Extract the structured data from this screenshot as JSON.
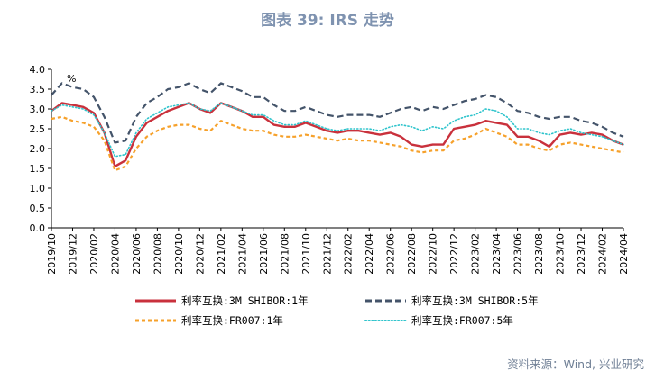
{
  "title": "图表 39: IRS 走势",
  "source": "资料来源：Wind, 兴业研究",
  "colors": {
    "title": "#7f93b0",
    "red": "#c9313c",
    "navy": "#44546a",
    "orange": "#f6a12b",
    "cyan": "#2ec4cc",
    "source": "#6f7f95"
  },
  "chart_data": {
    "type": "line",
    "unit": "%",
    "ylim": [
      0.0,
      4.0
    ],
    "yticks": [
      "0.0",
      "0.5",
      "1.0",
      "1.5",
      "2.0",
      "2.5",
      "3.0",
      "3.5",
      "4.0"
    ],
    "xticks": [
      "2019/10",
      "2019/12",
      "2020/02",
      "2020/04",
      "2020/06",
      "2020/08",
      "2020/10",
      "2020/12",
      "2021/02",
      "2021/04",
      "2021/06",
      "2021/08",
      "2021/10",
      "2021/12",
      "2022/02",
      "2022/04",
      "2022/06",
      "2022/08",
      "2022/10",
      "2022/12",
      "2023/02",
      "2023/04",
      "2023/06",
      "2023/08",
      "2023/10",
      "2023/12",
      "2024/02",
      "2024/04"
    ],
    "x": [
      "2019/10",
      "2019/11",
      "2019/12",
      "2020/01",
      "2020/02",
      "2020/03",
      "2020/04",
      "2020/05",
      "2020/06",
      "2020/07",
      "2020/08",
      "2020/09",
      "2020/10",
      "2020/11",
      "2020/12",
      "2021/01",
      "2021/02",
      "2021/03",
      "2021/04",
      "2021/05",
      "2021/06",
      "2021/07",
      "2021/08",
      "2021/09",
      "2021/10",
      "2021/11",
      "2021/12",
      "2022/01",
      "2022/02",
      "2022/03",
      "2022/04",
      "2022/05",
      "2022/06",
      "2022/07",
      "2022/08",
      "2022/09",
      "2022/10",
      "2022/11",
      "2022/12",
      "2023/01",
      "2023/02",
      "2023/03",
      "2023/04",
      "2023/05",
      "2023/06",
      "2023/07",
      "2023/08",
      "2023/09",
      "2023/10",
      "2023/11",
      "2023/12",
      "2024/01",
      "2024/02",
      "2024/03",
      "2024/04"
    ],
    "series": [
      {
        "name": "利率互换:3M SHIBOR:1年",
        "color": "#c9313c",
        "dash": "solid",
        "values": [
          2.95,
          3.15,
          3.1,
          3.05,
          2.9,
          2.4,
          1.55,
          1.7,
          2.3,
          2.65,
          2.8,
          2.95,
          3.05,
          3.15,
          3.0,
          2.9,
          3.15,
          3.05,
          2.95,
          2.8,
          2.8,
          2.6,
          2.55,
          2.55,
          2.65,
          2.55,
          2.45,
          2.4,
          2.45,
          2.45,
          2.4,
          2.35,
          2.4,
          2.3,
          2.1,
          2.05,
          2.1,
          2.1,
          2.5,
          2.55,
          2.6,
          2.7,
          2.65,
          2.6,
          2.3,
          2.3,
          2.2,
          2.05,
          2.35,
          2.4,
          2.35,
          2.4,
          2.35,
          2.2,
          2.1
        ]
      },
      {
        "name": "利率互换:3M SHIBOR:5年",
        "color": "#44546a",
        "dash": "long",
        "values": [
          3.35,
          3.65,
          3.55,
          3.5,
          3.3,
          2.8,
          2.15,
          2.2,
          2.8,
          3.15,
          3.3,
          3.5,
          3.55,
          3.65,
          3.5,
          3.4,
          3.65,
          3.55,
          3.45,
          3.3,
          3.3,
          3.1,
          2.95,
          2.95,
          3.05,
          2.95,
          2.85,
          2.8,
          2.85,
          2.85,
          2.85,
          2.8,
          2.9,
          3.0,
          3.05,
          2.95,
          3.05,
          3.0,
          3.1,
          3.2,
          3.25,
          3.35,
          3.3,
          3.15,
          2.95,
          2.9,
          2.8,
          2.75,
          2.8,
          2.8,
          2.7,
          2.65,
          2.55,
          2.4,
          2.3
        ]
      },
      {
        "name": "利率互换:FR007:1年",
        "color": "#f6a12b",
        "dash": "short",
        "values": [
          2.75,
          2.8,
          2.7,
          2.65,
          2.55,
          2.2,
          1.45,
          1.55,
          2.0,
          2.3,
          2.45,
          2.55,
          2.6,
          2.6,
          2.5,
          2.45,
          2.7,
          2.6,
          2.5,
          2.45,
          2.45,
          2.35,
          2.3,
          2.3,
          2.35,
          2.3,
          2.25,
          2.2,
          2.25,
          2.2,
          2.2,
          2.15,
          2.1,
          2.05,
          1.95,
          1.9,
          1.95,
          1.95,
          2.2,
          2.25,
          2.35,
          2.5,
          2.4,
          2.3,
          2.1,
          2.1,
          2.0,
          1.95,
          2.1,
          2.15,
          2.1,
          2.05,
          2.0,
          1.95,
          1.9
        ]
      },
      {
        "name": "利率互换:FR007:5年",
        "color": "#2ec4cc",
        "dash": "dot",
        "values": [
          2.95,
          3.1,
          3.05,
          3.0,
          2.85,
          2.4,
          1.8,
          1.85,
          2.4,
          2.75,
          2.9,
          3.05,
          3.1,
          3.15,
          3.0,
          2.95,
          3.15,
          3.05,
          2.95,
          2.85,
          2.85,
          2.7,
          2.6,
          2.6,
          2.7,
          2.6,
          2.5,
          2.45,
          2.5,
          2.5,
          2.5,
          2.45,
          2.55,
          2.6,
          2.55,
          2.45,
          2.55,
          2.5,
          2.7,
          2.8,
          2.85,
          3.0,
          2.95,
          2.8,
          2.5,
          2.5,
          2.4,
          2.35,
          2.45,
          2.5,
          2.4,
          2.35,
          2.3,
          2.2,
          2.1
        ]
      }
    ],
    "legend_position": "bottom",
    "grid": false
  }
}
